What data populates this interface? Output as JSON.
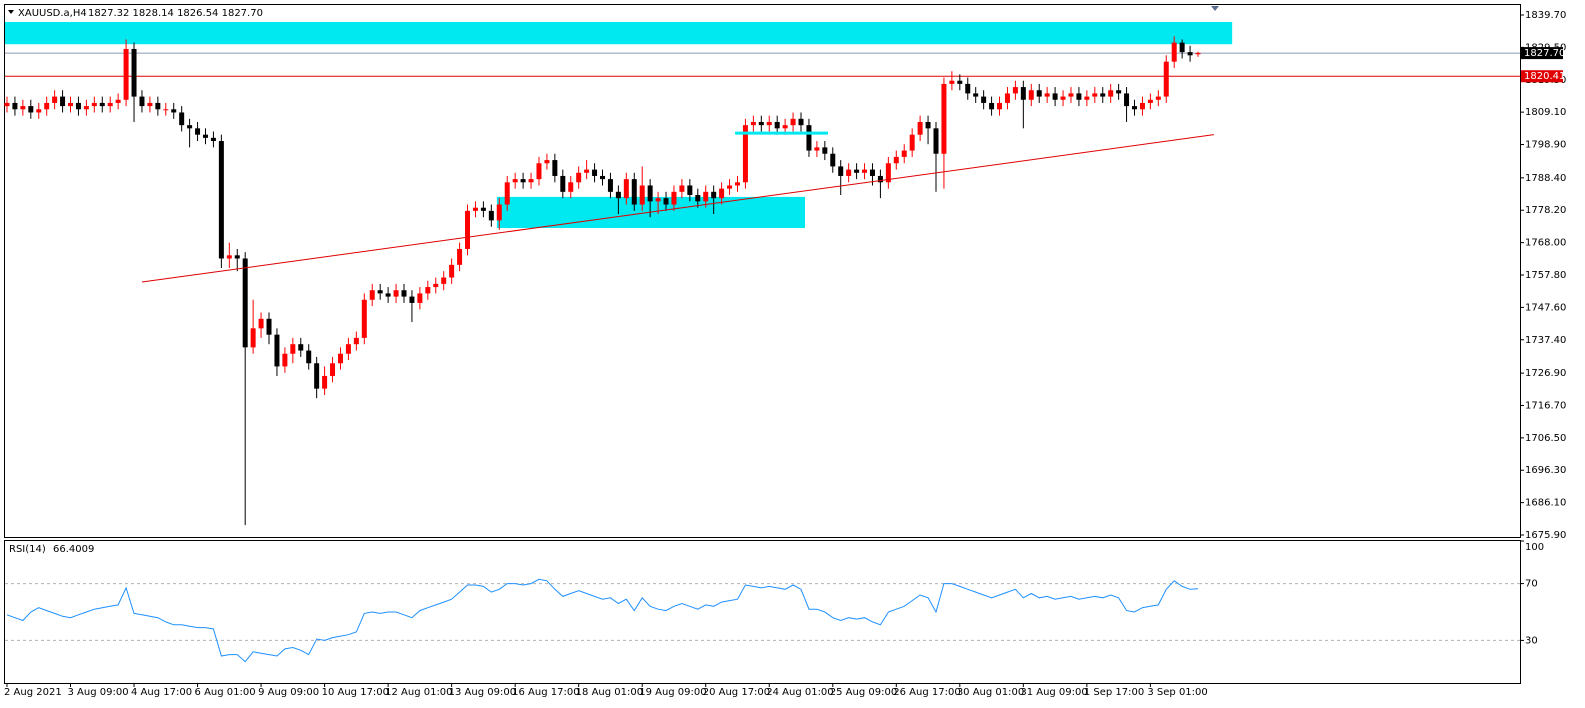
{
  "chart_data": {
    "type": "candlestick",
    "symbol": "XAUUSD.a,H4",
    "info": "1827.32 1828.14 1826.54 1827.70",
    "up_color": "#ff0000",
    "down_color": "#000000",
    "xlim": [
      -0.25,
      190.55
    ],
    "ylim": [
      1675.27,
      1842.85
    ],
    "yticks": [
      {
        "value": 1839.7,
        "label": "1839.70"
      },
      {
        "value": 1829.5,
        "label": "1829.50"
      },
      {
        "value": 1819.3,
        "label": "1819.30"
      },
      {
        "value": 1809.1,
        "label": "1809.10"
      },
      {
        "value": 1798.9,
        "label": "1798.90"
      },
      {
        "value": 1788.4,
        "label": "1788.40"
      },
      {
        "value": 1778.2,
        "label": "1778.20"
      },
      {
        "value": 1768,
        "label": "1768.00"
      },
      {
        "value": 1757.8,
        "label": "1757.80"
      },
      {
        "value": 1747.6,
        "label": "1747.60"
      },
      {
        "value": 1737.4,
        "label": "1737.40"
      },
      {
        "value": 1726.9,
        "label": "1726.90"
      },
      {
        "value": 1716.7,
        "label": "1716.70"
      },
      {
        "value": 1706.5,
        "label": "1706.50"
      },
      {
        "value": 1696.3,
        "label": "1696.30"
      },
      {
        "value": 1686.1,
        "label": "1686.10"
      },
      {
        "value": 1675.9,
        "label": "1675.90"
      }
    ],
    "xticks": [
      {
        "value": 0,
        "label": "2 Aug 2021"
      },
      {
        "value": 8,
        "label": "3 Aug 09:00"
      },
      {
        "value": 16,
        "label": "4 Aug 17:00"
      },
      {
        "value": 24,
        "label": "6 Aug 01:00"
      },
      {
        "value": 32,
        "label": "9 Aug 09:00"
      },
      {
        "value": 40,
        "label": "10 Aug 17:00"
      },
      {
        "value": 48,
        "label": "12 Aug 01:00"
      },
      {
        "value": 56,
        "label": "13 Aug 09:00"
      },
      {
        "value": 64,
        "label": "16 Aug 17:00"
      },
      {
        "value": 72,
        "label": "18 Aug 01:00"
      },
      {
        "value": 80,
        "label": "19 Aug 09:00"
      },
      {
        "value": 88,
        "label": "20 Aug 17:00"
      },
      {
        "value": 96,
        "label": "24 Aug 01:00"
      },
      {
        "value": 104,
        "label": "25 Aug 09:00"
      },
      {
        "value": 112,
        "label": "26 Aug 17:00"
      },
      {
        "value": 120,
        "label": "30 Aug 01:00"
      },
      {
        "value": 128,
        "label": "31 Aug 09:00"
      },
      {
        "value": 136,
        "label": "1 Sep 17:00"
      },
      {
        "value": 144,
        "label": "3 Sep 01:00"
      }
    ],
    "open": [
      1811,
      1812,
      1810,
      1811,
      1809,
      1810,
      1812,
      1814,
      1811,
      1812,
      1810,
      1811,
      1812,
      1811,
      1812,
      1813,
      1829,
      1814,
      1811,
      1812,
      1810,
      1810,
      1809,
      1805,
      1804,
      1802,
      1801,
      1800,
      1763,
      1764,
      1763,
      1735,
      1741,
      1744,
      1739,
      1729,
      1733,
      1736,
      1734,
      1730,
      1722,
      1726,
      1730,
      1733,
      1736,
      1738,
      1750,
      1753,
      1752,
      1751,
      1753,
      1751,
      1749,
      1752,
      1754,
      1755,
      1757,
      1761,
      1766,
      1778,
      1779,
      1778,
      1775,
      1780,
      1787,
      1788,
      1787,
      1788,
      1793,
      1794,
      1789,
      1784,
      1787,
      1790,
      1791,
      1789,
      1788,
      1784,
      1782,
      1788,
      1780,
      1786,
      1781,
      1782,
      1780,
      1784,
      1786,
      1783,
      1781,
      1784,
      1782,
      1785,
      1786,
      1787,
      1805,
      1806,
      1805,
      1806,
      1804,
      1805,
      1807,
      1805,
      1797,
      1798,
      1796,
      1792,
      1789,
      1791,
      1790,
      1791,
      1789,
      1787,
      1793,
      1795,
      1797,
      1802,
      1806,
      1804,
      1796,
      1818,
      1819,
      1818,
      1815,
      1814,
      1812,
      1810,
      1812,
      1815,
      1817,
      1813,
      1816,
      1814,
      1815,
      1813,
      1814,
      1815,
      1813,
      1814,
      1815,
      1814,
      1816,
      1815,
      1811,
      1810,
      1812,
      1813,
      1814,
      1825,
      1831,
      1828,
      1827.32
    ],
    "high": [
      1814,
      1814,
      1813,
      1813,
      1812,
      1814,
      1816,
      1816,
      1814,
      1814,
      1813,
      1814,
      1814,
      1814,
      1815,
      1832,
      1831,
      1816,
      1814,
      1814,
      1812,
      1812,
      1811,
      1807,
      1806,
      1804,
      1803,
      1802,
      1768,
      1766,
      1765,
      1750,
      1746,
      1746,
      1741,
      1735,
      1738,
      1738,
      1736,
      1732,
      1729,
      1732,
      1735,
      1738,
      1740,
      1752,
      1755,
      1755,
      1754,
      1755,
      1755,
      1753,
      1754,
      1756,
      1757,
      1759,
      1763,
      1768,
      1780,
      1781,
      1781,
      1780,
      1782,
      1789,
      1790,
      1790,
      1790,
      1795,
      1796,
      1796,
      1791,
      1789,
      1792,
      1794,
      1793,
      1791,
      1790,
      1786,
      1790,
      1790,
      1792,
      1788,
      1784,
      1784,
      1786,
      1788,
      1788,
      1785,
      1786,
      1786,
      1787,
      1788,
      1789,
      1807,
      1808,
      1808,
      1808,
      1808,
      1807,
      1809,
      1809,
      1807,
      1800,
      1800,
      1798,
      1794,
      1793,
      1793,
      1793,
      1793,
      1791,
      1795,
      1797,
      1799,
      1804,
      1808,
      1808,
      1806,
      1820,
      1822,
      1821,
      1820,
      1817,
      1816,
      1814,
      1814,
      1817,
      1819,
      1819,
      1818,
      1818,
      1817,
      1817,
      1816,
      1817,
      1817,
      1816,
      1817,
      1817,
      1818,
      1818,
      1817,
      1813,
      1814,
      1815,
      1816,
      1827,
      1833,
      1832,
      1830,
      1828.14
    ],
    "low": [
      1809,
      1808,
      1808,
      1807,
      1807,
      1808,
      1810,
      1809,
      1809,
      1808,
      1808,
      1809,
      1809,
      1809,
      1810,
      1811,
      1806,
      1809,
      1809,
      1808,
      1808,
      1807,
      1803,
      1798,
      1800,
      1799,
      1798,
      1760,
      1760,
      1759,
      1679,
      1733,
      1738,
      1736,
      1726,
      1727,
      1730,
      1732,
      1728,
      1719,
      1720,
      1724,
      1728,
      1731,
      1734,
      1736,
      1748,
      1750,
      1749,
      1749,
      1749,
      1743,
      1747,
      1750,
      1752,
      1753,
      1755,
      1759,
      1764,
      1776,
      1776,
      1773,
      1772,
      1778,
      1785,
      1785,
      1785,
      1786,
      1791,
      1787,
      1782,
      1782,
      1785,
      1788,
      1787,
      1786,
      1782,
      1777,
      1780,
      1778,
      1778,
      1776,
      1777,
      1778,
      1778,
      1782,
      1781,
      1779,
      1779,
      1777,
      1780,
      1783,
      1784,
      1785,
      1803,
      1803,
      1803,
      1802,
      1802,
      1803,
      1803,
      1795,
      1795,
      1794,
      1790,
      1783,
      1787,
      1788,
      1788,
      1786,
      1782,
      1785,
      1791,
      1793,
      1795,
      1800,
      1799,
      1784,
      1785,
      1816,
      1816,
      1813,
      1812,
      1810,
      1808,
      1808,
      1810,
      1813,
      1804,
      1811,
      1812,
      1812,
      1811,
      1811,
      1812,
      1811,
      1811,
      1812,
      1812,
      1812,
      1813,
      1806,
      1808,
      1808,
      1810,
      1811,
      1812,
      1823,
      1826,
      1825,
      1826.54
    ],
    "close": [
      1812,
      1810,
      1811,
      1809,
      1810,
      1812,
      1814,
      1811,
      1812,
      1810,
      1811,
      1812,
      1811,
      1812,
      1813,
      1829,
      1814,
      1811,
      1812,
      1810,
      1810,
      1809,
      1805,
      1804,
      1802,
      1801,
      1800,
      1763,
      1764,
      1763,
      1735,
      1741,
      1744,
      1739,
      1729,
      1733,
      1736,
      1734,
      1730,
      1722,
      1726,
      1730,
      1733,
      1736,
      1738,
      1750,
      1753,
      1752,
      1751,
      1753,
      1751,
      1749,
      1752,
      1754,
      1755,
      1757,
      1761,
      1766,
      1778,
      1779,
      1778,
      1775,
      1780,
      1787,
      1788,
      1787,
      1788,
      1793,
      1794,
      1789,
      1784,
      1787,
      1790,
      1791,
      1789,
      1788,
      1784,
      1782,
      1788,
      1780,
      1786,
      1781,
      1782,
      1780,
      1784,
      1786,
      1783,
      1781,
      1784,
      1782,
      1785,
      1786,
      1787,
      1805,
      1806,
      1805,
      1806,
      1804,
      1805,
      1807,
      1805,
      1797,
      1798,
      1796,
      1792,
      1789,
      1791,
      1790,
      1791,
      1789,
      1787,
      1793,
      1795,
      1797,
      1802,
      1806,
      1804,
      1796,
      1818,
      1819,
      1818,
      1815,
      1814,
      1812,
      1810,
      1812,
      1815,
      1817,
      1813,
      1816,
      1814,
      1815,
      1813,
      1814,
      1815,
      1813,
      1814,
      1815,
      1814,
      1816,
      1815,
      1811,
      1810,
      1812,
      1813,
      1814,
      1825,
      1831,
      1828,
      1827,
      1827.7
    ],
    "hlines": [
      {
        "value": 1827.7,
        "label": "1827.70",
        "color": "#8a9bb2",
        "badge": "#000000"
      },
      {
        "value": 1820.41,
        "label": "1820.41",
        "color": "#e00000",
        "badge": "#e00000"
      }
    ],
    "zones": [
      {
        "x": [
          -0.3,
          154.3
        ],
        "y": [
          1830.5,
          1837.5
        ],
        "color": "#00e8f0"
      },
      {
        "x": [
          61.7,
          100.5
        ],
        "y": [
          1772.6,
          1782.4
        ],
        "color": "#00e8f0"
      }
    ],
    "trendlines": [
      {
        "x": [
          17,
          152
        ],
        "y": [
          1755.6,
          1802
        ],
        "color": "#e00000",
        "width": 1
      },
      {
        "x": [
          91.7,
          103.4
        ],
        "y": [
          1802.5,
          1802.5
        ],
        "color": "#00e8f0",
        "width": 3
      }
    ],
    "rsi": {
      "label": "RSI(14)",
      "color": "#1e90ff",
      "ylim": [
        0,
        100
      ],
      "yticks": [
        100,
        70,
        30
      ],
      "values": [
        48,
        46,
        44,
        50,
        53,
        51,
        49,
        47,
        46,
        48,
        50,
        52,
        53,
        54,
        55,
        67,
        49,
        48,
        47,
        46,
        43,
        41,
        41,
        40,
        39,
        39,
        38,
        19,
        20,
        20,
        15,
        22,
        21,
        20,
        19,
        24,
        25,
        23,
        20,
        31,
        30,
        32,
        33,
        34,
        36,
        49,
        50,
        49,
        50,
        50,
        48,
        46,
        51,
        53,
        55,
        57,
        59,
        64,
        69,
        69,
        68,
        64,
        66,
        70,
        70,
        69,
        70,
        73,
        72,
        66,
        61,
        63,
        65,
        63,
        61,
        59,
        60,
        56,
        59,
        51,
        60,
        54,
        52,
        51,
        54,
        56,
        54,
        52,
        55,
        54,
        57,
        58,
        59,
        69,
        68,
        67,
        68,
        67,
        66,
        69,
        66,
        52,
        52,
        50,
        46,
        44,
        46,
        45,
        46,
        43,
        41,
        50,
        52,
        54,
        58,
        62,
        60,
        50,
        70,
        70,
        68,
        66,
        64,
        62,
        60,
        62,
        64,
        66,
        60,
        63,
        60,
        61,
        59,
        60,
        61,
        59,
        60,
        61,
        60,
        62,
        60,
        51,
        50,
        53,
        54,
        55,
        66,
        72,
        68,
        66,
        66.4009
      ]
    }
  }
}
